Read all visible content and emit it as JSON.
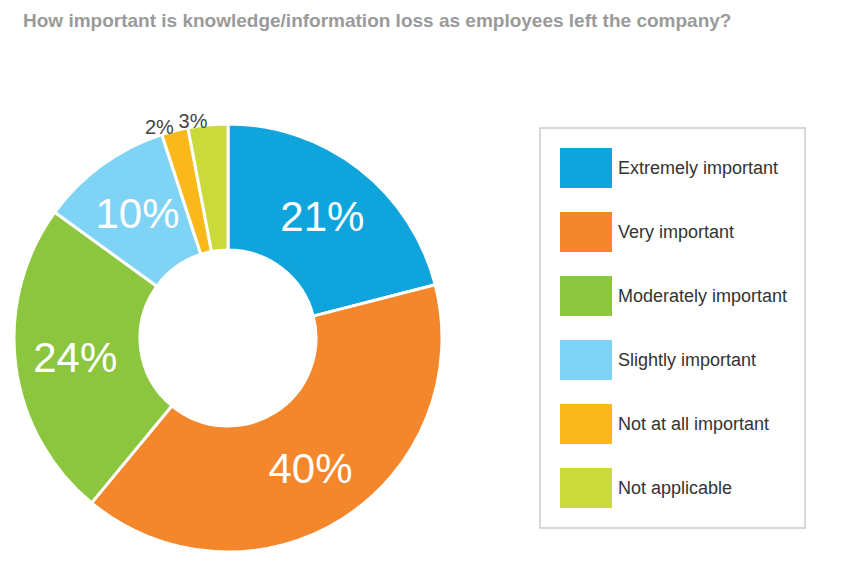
{
  "chart_data": {
    "type": "donut",
    "title": "How important is knowledge/information loss as employees left the company?",
    "categories": [
      "Extremely important",
      "Very important",
      "Moderately important",
      "Slightly important",
      "Not at all important",
      "Not applicable"
    ],
    "values": [
      21,
      40,
      24,
      10,
      2,
      3
    ],
    "value_labels": [
      "21%",
      "40%",
      "24%",
      "10%",
      "2%",
      "3%"
    ],
    "colors": [
      "#0fa5dc",
      "#f4862b",
      "#8cc63f",
      "#7fd3f5",
      "#fbb81b",
      "#c9da3a"
    ],
    "data_labels": true,
    "legend": "right"
  }
}
